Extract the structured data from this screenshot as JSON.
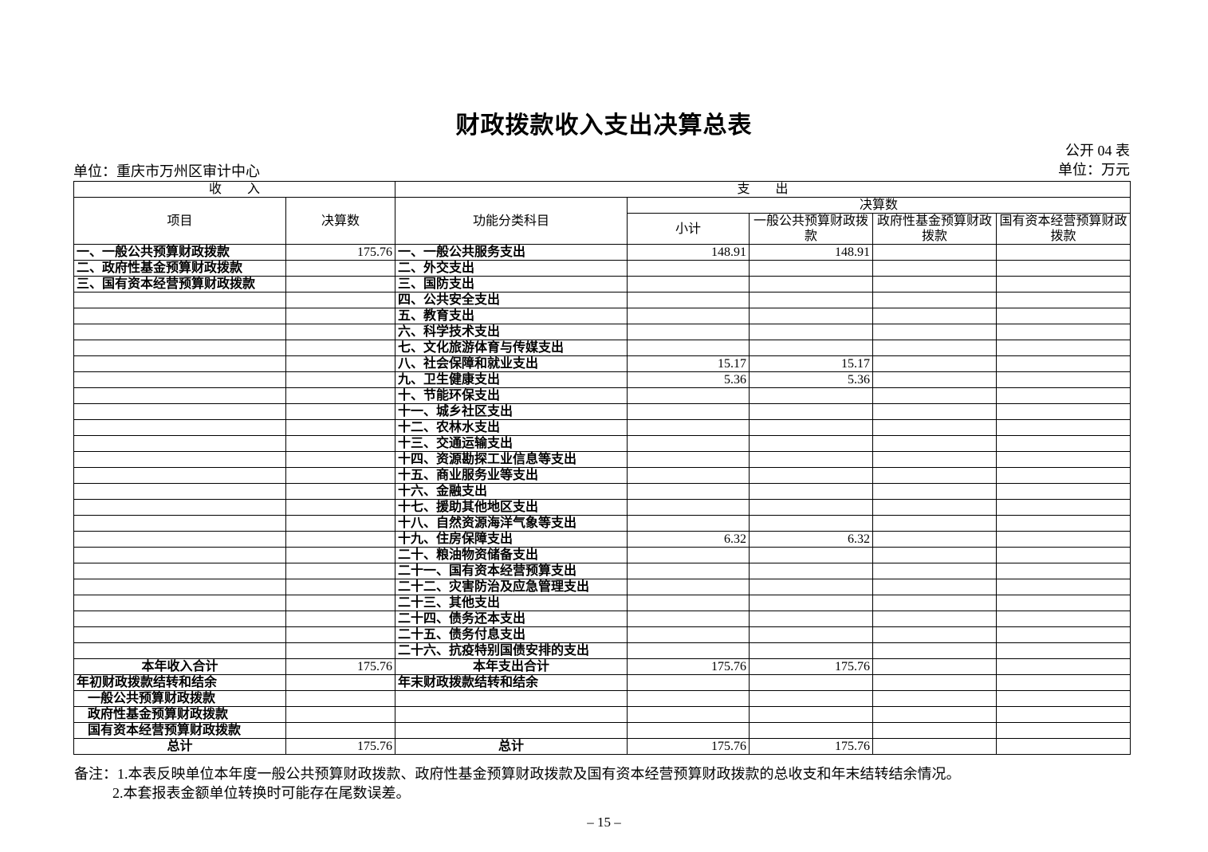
{
  "page": {
    "title": "财政拨款收入支出决算总表",
    "form_no": "公开 04 表",
    "unit_name": "单位：重庆市万州区审计中心",
    "unit_money": "单位：万元",
    "page_number": "– 15 –"
  },
  "table": {
    "income_section": "收　　入",
    "expense_section": "支　　出",
    "col_item": "项目",
    "col_amount": "决算数",
    "col_function": "功能分类科目",
    "col_amount_group": "决算数",
    "sub_cols": [
      "小计",
      "一般公共预算财政拨款",
      "政府性基金预算财政拨款",
      "国有资本经营预算财政拨款"
    ],
    "rows": [
      {
        "income": "一、一般公共预算财政拨款",
        "income_value": "175.76",
        "expense": "一、一般公共服务支出",
        "subtotal": "148.91",
        "general": "148.91",
        "gov_fund": "",
        "state_capital": ""
      },
      {
        "income": "二、政府性基金预算财政拨款",
        "income_value": "",
        "expense": "二、外交支出",
        "subtotal": "",
        "general": "",
        "gov_fund": "",
        "state_capital": ""
      },
      {
        "income": "三、国有资本经营预算财政拨款",
        "income_value": "",
        "expense": "三、国防支出",
        "subtotal": "",
        "general": "",
        "gov_fund": "",
        "state_capital": ""
      },
      {
        "income": "",
        "income_value": "",
        "expense": "四、公共安全支出",
        "subtotal": "",
        "general": "",
        "gov_fund": "",
        "state_capital": ""
      },
      {
        "income": "",
        "income_value": "",
        "expense": "五、教育支出",
        "subtotal": "",
        "general": "",
        "gov_fund": "",
        "state_capital": ""
      },
      {
        "income": "",
        "income_value": "",
        "expense": "六、科学技术支出",
        "subtotal": "",
        "general": "",
        "gov_fund": "",
        "state_capital": ""
      },
      {
        "income": "",
        "income_value": "",
        "expense": "七、文化旅游体育与传媒支出",
        "subtotal": "",
        "general": "",
        "gov_fund": "",
        "state_capital": ""
      },
      {
        "income": "",
        "income_value": "",
        "expense": "八、社会保障和就业支出",
        "subtotal": "15.17",
        "general": "15.17",
        "gov_fund": "",
        "state_capital": ""
      },
      {
        "income": "",
        "income_value": "",
        "expense": "九、卫生健康支出",
        "subtotal": "5.36",
        "general": "5.36",
        "gov_fund": "",
        "state_capital": ""
      },
      {
        "income": "",
        "income_value": "",
        "expense": "十、节能环保支出",
        "subtotal": "",
        "general": "",
        "gov_fund": "",
        "state_capital": ""
      },
      {
        "income": "",
        "income_value": "",
        "expense": "十一、城乡社区支出",
        "subtotal": "",
        "general": "",
        "gov_fund": "",
        "state_capital": ""
      },
      {
        "income": "",
        "income_value": "",
        "expense": "十二、农林水支出",
        "subtotal": "",
        "general": "",
        "gov_fund": "",
        "state_capital": ""
      },
      {
        "income": "",
        "income_value": "",
        "expense": "十三、交通运输支出",
        "subtotal": "",
        "general": "",
        "gov_fund": "",
        "state_capital": ""
      },
      {
        "income": "",
        "income_value": "",
        "expense": "十四、资源勘探工业信息等支出",
        "subtotal": "",
        "general": "",
        "gov_fund": "",
        "state_capital": ""
      },
      {
        "income": "",
        "income_value": "",
        "expense": "十五、商业服务业等支出",
        "subtotal": "",
        "general": "",
        "gov_fund": "",
        "state_capital": ""
      },
      {
        "income": "",
        "income_value": "",
        "expense": "十六、金融支出",
        "subtotal": "",
        "general": "",
        "gov_fund": "",
        "state_capital": ""
      },
      {
        "income": "",
        "income_value": "",
        "expense": "十七、援助其他地区支出",
        "subtotal": "",
        "general": "",
        "gov_fund": "",
        "state_capital": ""
      },
      {
        "income": "",
        "income_value": "",
        "expense": "十八、自然资源海洋气象等支出",
        "subtotal": "",
        "general": "",
        "gov_fund": "",
        "state_capital": ""
      },
      {
        "income": "",
        "income_value": "",
        "expense": "十九、住房保障支出",
        "subtotal": "6.32",
        "general": "6.32",
        "gov_fund": "",
        "state_capital": ""
      },
      {
        "income": "",
        "income_value": "",
        "expense": "二十、粮油物资储备支出",
        "subtotal": "",
        "general": "",
        "gov_fund": "",
        "state_capital": ""
      },
      {
        "income": "",
        "income_value": "",
        "expense": "二十一、国有资本经营预算支出",
        "subtotal": "",
        "general": "",
        "gov_fund": "",
        "state_capital": ""
      },
      {
        "income": "",
        "income_value": "",
        "expense": "二十二、灾害防治及应急管理支出",
        "subtotal": "",
        "general": "",
        "gov_fund": "",
        "state_capital": ""
      },
      {
        "income": "",
        "income_value": "",
        "expense": "二十三、其他支出",
        "subtotal": "",
        "general": "",
        "gov_fund": "",
        "state_capital": ""
      },
      {
        "income": "",
        "income_value": "",
        "expense": "二十四、债务还本支出",
        "subtotal": "",
        "general": "",
        "gov_fund": "",
        "state_capital": ""
      },
      {
        "income": "",
        "income_value": "",
        "expense": "二十五、债务付息支出",
        "subtotal": "",
        "general": "",
        "gov_fund": "",
        "state_capital": ""
      },
      {
        "income": "",
        "income_value": "",
        "expense": "二十六、抗疫特别国债安排的支出",
        "subtotal": "",
        "general": "",
        "gov_fund": "",
        "state_capital": ""
      }
    ],
    "summary_rows": [
      {
        "income": "本年收入合计",
        "income_align": "center",
        "income_value": "175.76",
        "expense": "本年支出合计",
        "expense_align": "center",
        "subtotal": "175.76",
        "general": "175.76",
        "gov_fund": "",
        "state_capital": ""
      },
      {
        "income": "年初财政拨款结转和结余",
        "income_value": "",
        "expense": "年末财政拨款结转和结余",
        "subtotal": "",
        "general": "",
        "gov_fund": "",
        "state_capital": ""
      },
      {
        "income": "一般公共预算财政拨款",
        "income_indent": true,
        "income_value": "",
        "expense": "",
        "subtotal": "",
        "general": "",
        "gov_fund": "",
        "state_capital": ""
      },
      {
        "income": "政府性基金预算财政拨款",
        "income_indent": true,
        "income_value": "",
        "expense": "",
        "subtotal": "",
        "general": "",
        "gov_fund": "",
        "state_capital": ""
      },
      {
        "income": "国有资本经营预算财政拨款",
        "income_indent": true,
        "income_value": "",
        "expense": "",
        "subtotal": "",
        "general": "",
        "gov_fund": "",
        "state_capital": ""
      },
      {
        "income": "总计",
        "income_align": "center",
        "income_value": "175.76",
        "expense": "总计",
        "expense_align": "center",
        "subtotal": "175.76",
        "general": "175.76",
        "gov_fund": "",
        "state_capital": ""
      }
    ]
  },
  "notes": {
    "label": "备注：",
    "note1": "1.本表反映单位本年度一般公共预算财政拨款、政府性基金预算财政拨款及国有资本经营预算财政拨款的总收支和年末结转结余情况。",
    "note2": "2.本套报表金额单位转换时可能存在尾数误差。"
  }
}
